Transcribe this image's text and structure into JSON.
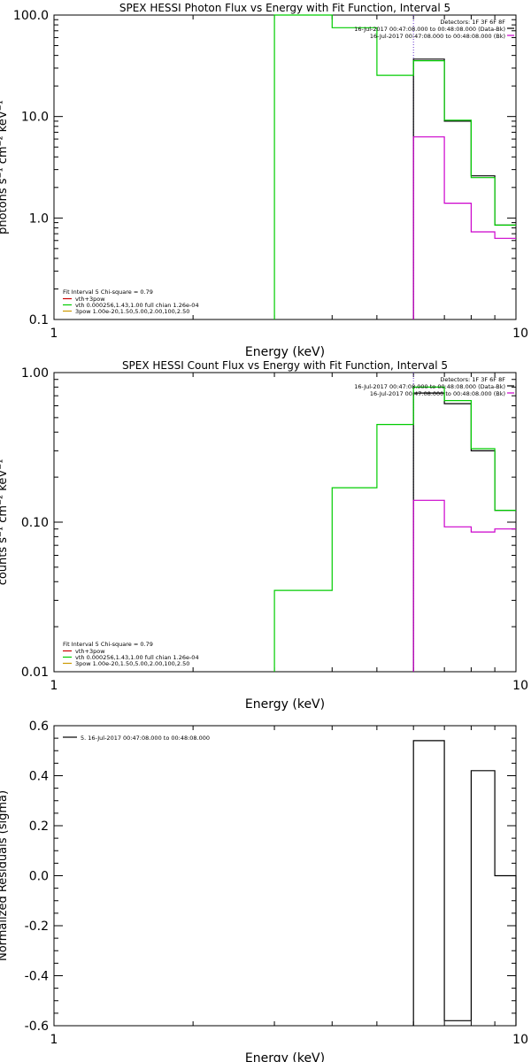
{
  "chart_data": [
    {
      "type": "line",
      "title": "SPEX HESSI Photon Flux vs Energy with Fit Function, Interval 5",
      "xlabel": "Energy (keV)",
      "ylabel": "photons s⁻¹ cm⁻² keV⁻¹",
      "xscale": "log",
      "yscale": "log",
      "xlim": [
        1,
        10
      ],
      "ylim": [
        0.1,
        100
      ],
      "x_ticks": [
        1,
        10
      ],
      "x_tick_labels": [
        "1",
        "10"
      ],
      "y_ticks": [
        0.1,
        1,
        10,
        100
      ],
      "y_tick_labels": [
        "0.1",
        "1.0",
        "10.0",
        "100.0"
      ],
      "vline_x": 6,
      "legend_top": {
        "placement": "top-right",
        "lines": [
          "Detectors: 1F 3F 6F 8F",
          "16-Jul-2017 00:47:08.000 to 00:48:08.000 (Data-Bk)",
          "16-Jul-2017 00:47:08.000 to 00:48:08.000 (Bk)"
        ],
        "colors": [
          "#000000",
          "#000000",
          "#cc00cc"
        ]
      },
      "legend_bottom": {
        "placement": "bottom-left",
        "header": "Fit Interval 5   Chi-square = 0.79",
        "lines": [
          "vth+3pow",
          "vth 0.000256,1.43,1.00  full chian 1.26e-04",
          "3pow 1.00e-20,1.50,5.00,2.00,100,2.50"
        ],
        "colors": [
          "#cc0000",
          "#00cc00",
          "#cc9900"
        ]
      },
      "series": [
        {
          "color": "#000000",
          "edges": [
            6,
            7,
            8,
            9,
            10
          ],
          "values": [
            36.8,
            9.0,
            2.6,
            0.85
          ]
        },
        {
          "color": "#cc00cc",
          "edges": [
            6,
            7,
            8,
            9,
            10
          ],
          "values": [
            6.3,
            1.4,
            0.73,
            0.63
          ]
        },
        {
          "color": "#00cc00",
          "edges": [
            3,
            4,
            5,
            6,
            7,
            8,
            9,
            10
          ],
          "values": [
            100,
            75,
            25.5,
            35.5,
            9.2,
            2.5,
            0.85
          ]
        }
      ]
    },
    {
      "type": "line",
      "title": "SPEX HESSI Count Flux vs Energy with Fit Function, Interval 5",
      "xlabel": "Energy (keV)",
      "ylabel": "counts s⁻¹ cm⁻² keV⁻¹",
      "xscale": "log",
      "yscale": "log",
      "xlim": [
        1,
        10
      ],
      "ylim": [
        0.01,
        1
      ],
      "x_ticks": [
        1,
        10
      ],
      "x_tick_labels": [
        "1",
        "10"
      ],
      "y_ticks": [
        0.01,
        0.1,
        1
      ],
      "y_tick_labels": [
        "0.01",
        "0.10",
        "1.00"
      ],
      "vline_x": 6,
      "legend_top": {
        "placement": "top-right",
        "lines": [
          "Detectors: 1F 3F 6F 8F",
          "16-Jul-2017 00:47:08.000 to 00:48:08.000 (Data-Bk)",
          "16-Jul-2017 00:47:08.000 to 00:48:08.000 (Bk)"
        ],
        "colors": [
          "#000000",
          "#000000",
          "#cc00cc"
        ]
      },
      "legend_bottom": {
        "placement": "bottom-left",
        "header": "Fit Interval 5   Chi-square = 0.79",
        "lines": [
          "vth+3pow",
          "vth 0.000256,1.43,1.00  full chian 1.26e-04",
          "3pow 1.00e-20,1.50,5.00,2.00,100,2.50"
        ],
        "colors": [
          "#cc0000",
          "#00cc00",
          "#cc9900"
        ]
      },
      "series": [
        {
          "color": "#000000",
          "edges": [
            6,
            7,
            8,
            9,
            10
          ],
          "values": [
            0.73,
            0.62,
            0.3,
            0.12
          ]
        },
        {
          "color": "#cc00cc",
          "edges": [
            6,
            7,
            8,
            9,
            10
          ],
          "values": [
            0.14,
            0.093,
            0.086,
            0.09
          ]
        },
        {
          "color": "#00cc00",
          "edges": [
            3,
            4,
            5,
            6,
            7,
            8,
            9,
            10
          ],
          "values": [
            0.035,
            0.17,
            0.45,
            0.8,
            0.65,
            0.31,
            0.12
          ]
        }
      ]
    },
    {
      "type": "line",
      "title": "",
      "xlabel": "Energy (keV)",
      "ylabel": "Normalized Residuals (sigma)",
      "xscale": "log",
      "yscale": "linear",
      "xlim": [
        1,
        10
      ],
      "ylim": [
        -0.6,
        0.6
      ],
      "x_ticks": [
        1,
        10
      ],
      "x_tick_labels": [
        "1",
        "10"
      ],
      "y_ticks": [
        -0.6,
        -0.4,
        -0.2,
        0.0,
        0.2,
        0.4,
        0.6
      ],
      "y_tick_labels": [
        "-0.6",
        "-0.4",
        "-0.2",
        "0.0",
        "0.2",
        "0.4",
        "0.6"
      ],
      "legend_top": {
        "placement": "top-left",
        "lines": [
          "5. 16-Jul-2017 00:47:08.000 to 00:48:08.000"
        ],
        "colors": [
          "#000000"
        ]
      },
      "series": [
        {
          "color": "#000000",
          "edges": [
            6,
            7,
            8,
            9,
            10
          ],
          "values": [
            0.54,
            -0.58,
            0.42,
            0.0
          ]
        }
      ]
    }
  ]
}
